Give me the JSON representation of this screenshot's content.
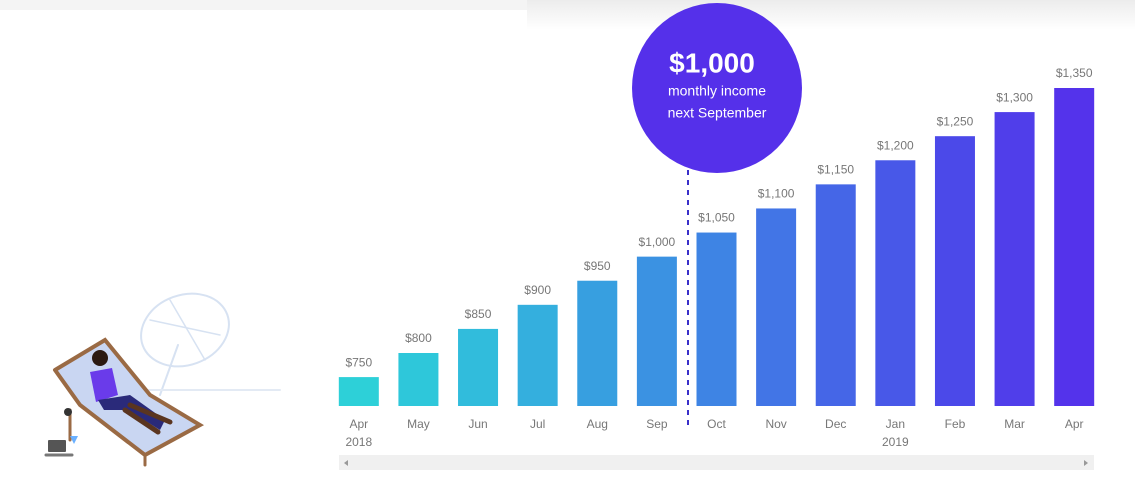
{
  "chart_data": {
    "type": "bar",
    "categories": [
      "Apr",
      "May",
      "Jun",
      "Jul",
      "Aug",
      "Sep",
      "Oct",
      "Nov",
      "Dec",
      "Jan",
      "Feb",
      "Mar",
      "Apr"
    ],
    "years": [
      "2018",
      null,
      null,
      null,
      null,
      null,
      null,
      null,
      null,
      "2019",
      null,
      null,
      null
    ],
    "values": [
      750,
      800,
      850,
      900,
      950,
      1000,
      1050,
      1100,
      1150,
      1200,
      1250,
      1300,
      1350
    ],
    "value_labels": [
      "$750",
      "$800",
      "$850",
      "$900",
      "$950",
      "$1,000",
      "$1,050",
      "$1,100",
      "$1,150",
      "$1,200",
      "$1,250",
      "$1,300",
      "$1,350"
    ],
    "colors": [
      "#2dd0d8",
      "#2ec7da",
      "#31bcdc",
      "#34afde",
      "#379fe0",
      "#3b92e2",
      "#3e84e4",
      "#4275e6",
      "#4566e7",
      "#4858e8",
      "#4b49e9",
      "#503eea",
      "#5433eb"
    ],
    "ylim": [
      690,
      1350
    ],
    "annotation": {
      "title": "$1,000",
      "lines": [
        "monthly income",
        "next September"
      ]
    }
  }
}
